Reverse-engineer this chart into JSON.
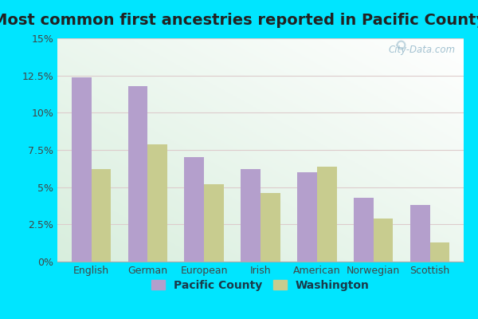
{
  "title": "Most common first ancestries reported in Pacific County",
  "categories": [
    "English",
    "German",
    "European",
    "Irish",
    "American",
    "Norwegian",
    "Scottish"
  ],
  "pacific_county": [
    12.4,
    11.8,
    7.0,
    6.2,
    6.0,
    4.3,
    3.8
  ],
  "washington": [
    6.2,
    7.9,
    5.2,
    4.6,
    6.4,
    2.9,
    1.3
  ],
  "pacific_color": "#b49fcc",
  "washington_color": "#c8cc8f",
  "bg_color": "#00e5ff",
  "chart_bg_top_right": "#ffffff",
  "chart_bg_bottom_left": "#d8eedd",
  "ylim": [
    0,
    15
  ],
  "yticks": [
    0,
    2.5,
    5.0,
    7.5,
    10.0,
    12.5,
    15.0
  ],
  "ytick_labels": [
    "0%",
    "2.5%",
    "5%",
    "7.5%",
    "10%",
    "12.5%",
    "15%"
  ],
  "title_fontsize": 14,
  "legend_labels": [
    "Pacific County",
    "Washington"
  ],
  "watermark": "City-Data.com",
  "bar_width": 0.35
}
